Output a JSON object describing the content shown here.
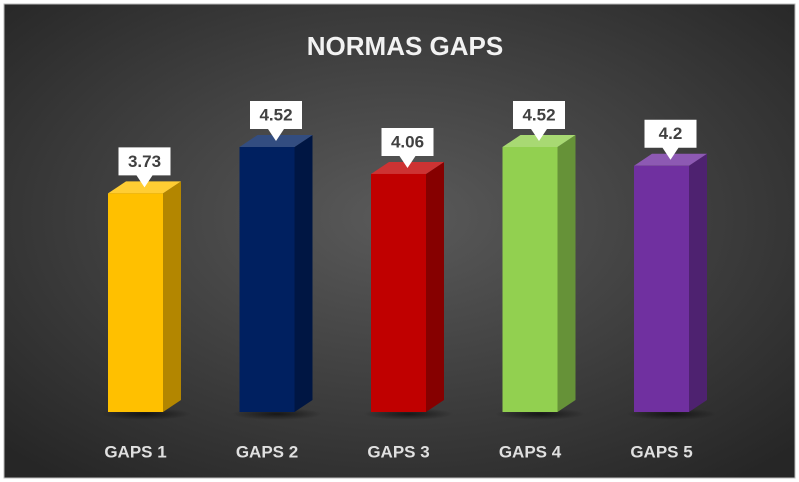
{
  "chart_data": {
    "type": "bar3d",
    "title": "NORMAS GAPS",
    "categories": [
      "GAPS 1",
      "GAPS 2",
      "GAPS 3",
      "GAPS 4",
      "GAPS 5"
    ],
    "values": [
      3.73,
      4.52,
      4.06,
      4.52,
      4.2
    ],
    "colors": [
      "#ffc000",
      "#002060",
      "#c00000",
      "#92d050",
      "#7030a0"
    ]
  }
}
